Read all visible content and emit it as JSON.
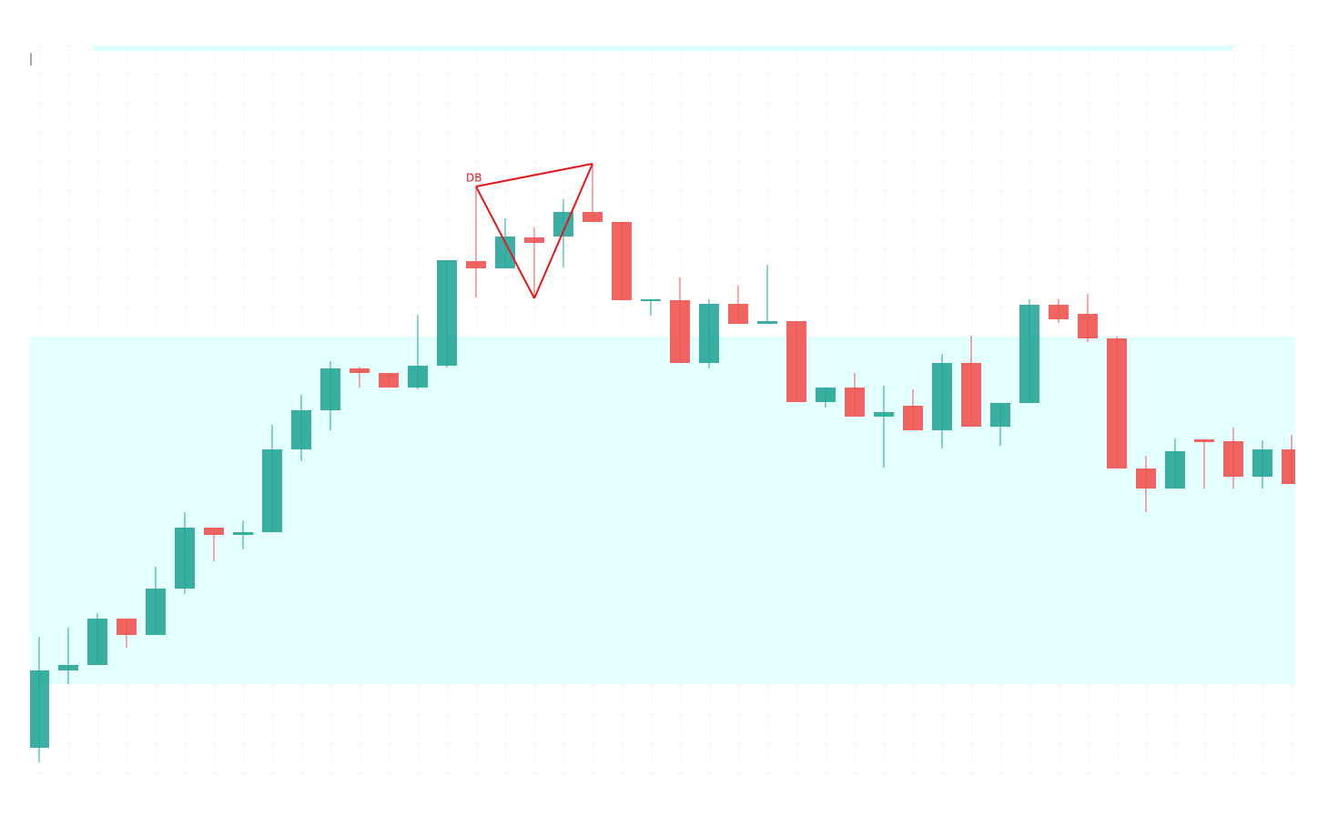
{
  "chart_data": {
    "type": "candlestick",
    "ylim": [
      0,
      90
    ],
    "up_color": "#26a69a",
    "down_color": "#ef5350",
    "zone": [
      14.8,
      53.0
    ],
    "zone_color": "#e0ffff",
    "pattern": {
      "label": "DB",
      "color": "#e3171d",
      "indices": [
        15,
        17,
        19
      ],
      "values": [
        69.5,
        57.2,
        72.0
      ]
    },
    "open": [
      7.8,
      16.3,
      16.9,
      22.0,
      20.2,
      25.3,
      32.0,
      31.2,
      31.5,
      40.6,
      44.9,
      49.5,
      49.0,
      47.4,
      49.8,
      61.3,
      60.5,
      63.9,
      64.0,
      66.7,
      65.6,
      56.9,
      57.0,
      50.1,
      56.6,
      54.4,
      54.7,
      45.8,
      47.4,
      44.2,
      45.4,
      42.7,
      50.1,
      43.1,
      45.7,
      56.5,
      55.5,
      52.8,
      38.5,
      36.3,
      41.7,
      41.5,
      37.6,
      40.6
    ],
    "high": [
      20.0,
      21.0,
      22.6,
      22.0,
      27.7,
      33.7,
      32.0,
      32.8,
      43.3,
      46.6,
      50.3,
      49.7,
      49.0,
      55.4,
      61.4,
      69.5,
      66.0,
      65.0,
      68.1,
      72.0,
      65.6,
      57.1,
      59.5,
      57.1,
      58.6,
      60.9,
      54.7,
      47.4,
      49.0,
      47.6,
      47.2,
      51.1,
      53.1,
      45.7,
      57.1,
      57.1,
      57.7,
      53.0,
      39.9,
      41.8,
      41.7,
      43.0,
      41.6,
      42.2
    ],
    "low": [
      6.2,
      14.8,
      16.9,
      18.8,
      20.2,
      24.7,
      28.3,
      29.6,
      31.5,
      39.3,
      42.7,
      47.4,
      47.4,
      47.2,
      49.6,
      57.3,
      60.5,
      57.2,
      60.6,
      65.6,
      57.0,
      55.3,
      50.1,
      49.5,
      54.4,
      54.4,
      45.8,
      45.2,
      44.2,
      38.6,
      42.7,
      40.7,
      43.1,
      41.0,
      45.7,
      54.5,
      52.4,
      38.5,
      33.7,
      36.3,
      36.3,
      36.3,
      36.3,
      36.8
    ],
    "close": [
      16.3,
      16.9,
      22.0,
      20.2,
      25.3,
      32.0,
      31.2,
      31.5,
      40.6,
      44.9,
      49.5,
      49.0,
      47.4,
      49.8,
      61.4,
      60.5,
      64.0,
      63.3,
      66.7,
      65.6,
      57.0,
      57.1,
      50.1,
      56.6,
      54.4,
      54.7,
      45.8,
      47.4,
      44.2,
      44.7,
      42.7,
      50.1,
      43.1,
      45.7,
      56.5,
      54.9,
      52.8,
      38.5,
      36.3,
      40.4,
      41.4,
      37.6,
      40.6,
      36.8
    ]
  }
}
